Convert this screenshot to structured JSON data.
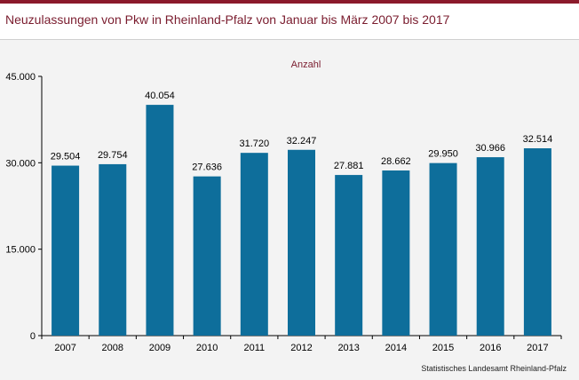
{
  "header": {
    "title": "Neuzulassungen von Pkw in Rheinland-Pfalz von Januar bis März 2007 bis 2017"
  },
  "footer": {
    "source": "Statistisches Landesamt Rheinland-Pfalz"
  },
  "colors": {
    "bar": "#0e6e9b",
    "title": "#7a1c2e",
    "accent_rule": "#8b1a2b",
    "unit_label": "#7a1c2e",
    "background": "#f3f3f3"
  },
  "chart_data": {
    "type": "bar",
    "title": "Neuzulassungen von Pkw in Rheinland-Pfalz von Januar bis März 2007 bis 2017",
    "ylabel": "Anzahl",
    "xlabel": "",
    "categories": [
      "2007",
      "2008",
      "2009",
      "2010",
      "2011",
      "2012",
      "2013",
      "2014",
      "2015",
      "2016",
      "2017"
    ],
    "values": [
      29504,
      29754,
      40054,
      27636,
      31720,
      32247,
      27881,
      28662,
      29950,
      30966,
      32514
    ],
    "value_labels": [
      "29.504",
      "29.754",
      "40.054",
      "27.636",
      "31.720",
      "32.247",
      "27.881",
      "28.662",
      "29.950",
      "30.966",
      "32.514"
    ],
    "ylim": [
      0,
      45000
    ],
    "yticks": [
      0,
      15000,
      30000,
      45000
    ],
    "ytick_labels": [
      "0",
      "15.000",
      "30.000",
      "45.000"
    ],
    "grid": false,
    "legend": "none"
  }
}
